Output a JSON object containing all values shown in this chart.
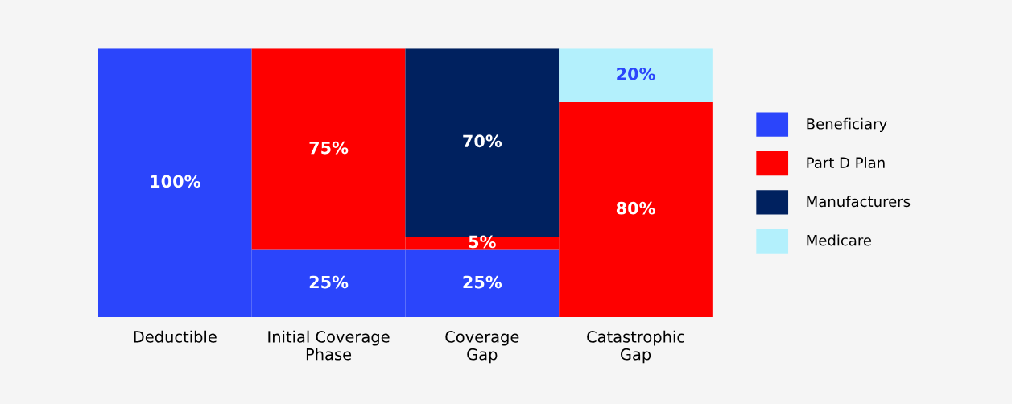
{
  "chart_data": {
    "type": "bar",
    "stacked": true,
    "legend": "right",
    "grid": false,
    "tick_labels": "x",
    "categories": [
      "Deductible",
      "Initial Coverage\nPhase",
      "Coverage\nGap",
      "Catastrophic\nGap"
    ],
    "series": [
      {
        "name": "Beneficiary",
        "color": "#2b45fb",
        "values": [
          100,
          25,
          25,
          null
        ],
        "value_labels": [
          "100%",
          "25%",
          "25%",
          null
        ]
      },
      {
        "name": "Part D Plan",
        "color": "#fe0000",
        "values": [
          null,
          75,
          5,
          80
        ],
        "value_labels": [
          null,
          "75%",
          "5%",
          "80%"
        ]
      },
      {
        "name": "Manufacturers",
        "color": "#00215f",
        "values": [
          null,
          null,
          70,
          null
        ],
        "value_labels": [
          null,
          null,
          "70%",
          null
        ]
      },
      {
        "name": "Medicare",
        "color": "#b3f0fc",
        "values": [
          null,
          null,
          null,
          20
        ],
        "value_labels": [
          null,
          null,
          null,
          "20%"
        ]
      }
    ]
  }
}
